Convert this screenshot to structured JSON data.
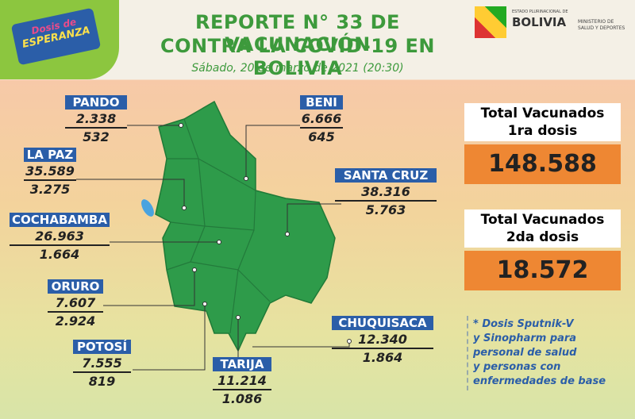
{
  "header": {
    "title_line1": "REPORTE N° 33 DE VACUNACIÓN",
    "title_line2": "CONTRA LA COVID-19 EN BOLIVIA",
    "date": "Sábado, 20 de marzo de 2021 (20:30)"
  },
  "logo": {
    "line1": "Dosis de",
    "line2": "ESPERANZA"
  },
  "ministry": {
    "state": "ESTADO PLURINACIONAL DE",
    "brand": "BOLIVIA",
    "ministry_line1": "MINISTERIO DE",
    "ministry_line2": "SALUD Y DEPORTES"
  },
  "departments": [
    {
      "name": "PANDO",
      "first": "2.338",
      "second": "532"
    },
    {
      "name": "BENI",
      "first": "6.666",
      "second": "645"
    },
    {
      "name": "LA PAZ",
      "first": "35.589",
      "second": "3.275"
    },
    {
      "name": "SANTA CRUZ",
      "first": "38.316",
      "second": "5.763"
    },
    {
      "name": "COCHABAMBA",
      "first": "26.963",
      "second": "1.664"
    },
    {
      "name": "ORURO",
      "first": "7.607",
      "second": "2.924"
    },
    {
      "name": "POTOSÍ",
      "first": "7.555",
      "second": "819"
    },
    {
      "name": "TARIJA",
      "first": "11.214",
      "second": "1.086"
    },
    {
      "name": "CHUQUISACA",
      "first": "12.340",
      "second": "1.864"
    }
  ],
  "totals": [
    {
      "label_line1": "Total Vacunados",
      "label_line2": "1ra dosis",
      "value": "148.588"
    },
    {
      "label_line1": "Total Vacunados",
      "label_line2": "2da dosis",
      "value": "18.572"
    }
  ],
  "note": {
    "lines": [
      "* Dosis Sputnik-V",
      "y Sinopharm para",
      "personal de salud",
      "y personas con",
      "enfermedades de base"
    ]
  }
}
